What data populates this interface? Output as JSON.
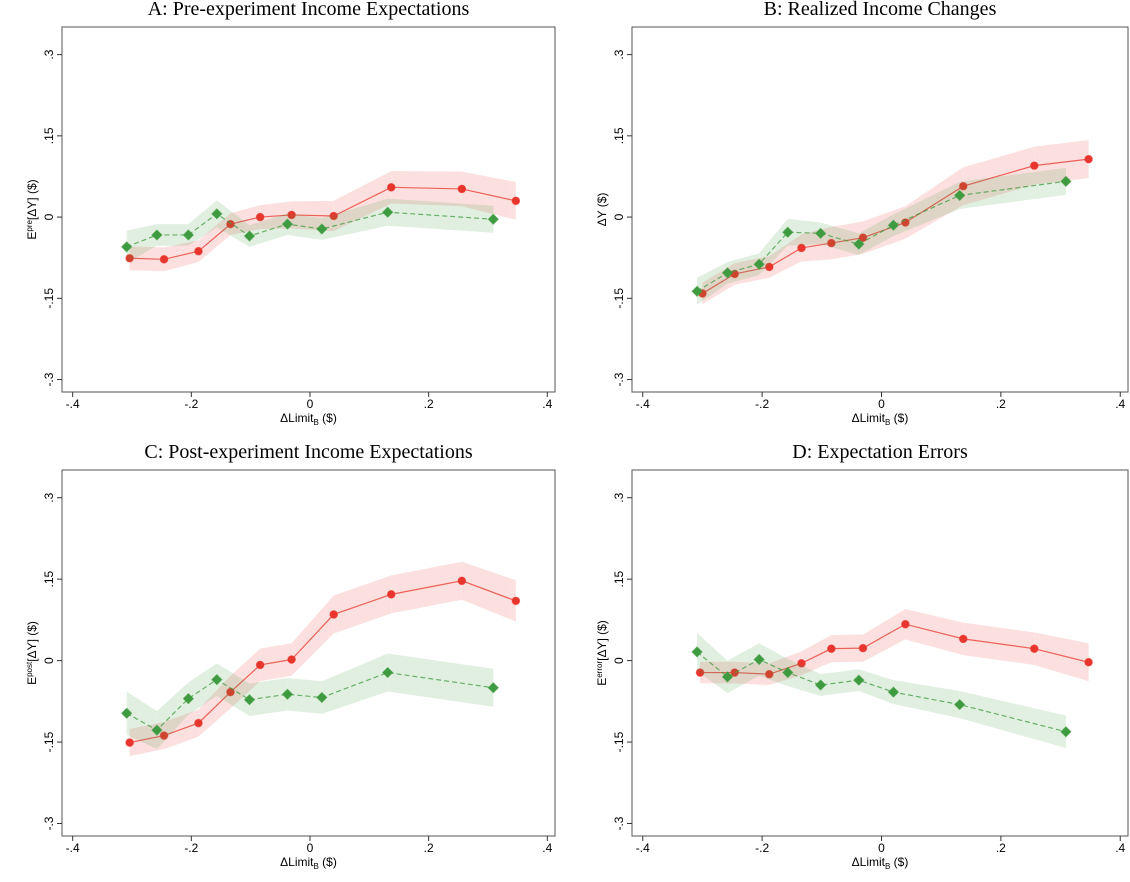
{
  "chart_data": [
    {
      "type": "line",
      "title": "A: Pre-experiment Income Expectations",
      "xlabel": [
        "ΔLimit",
        "B",
        " ($)"
      ],
      "ylabel": [
        "E",
        "pre",
        "[ΔY] ($)"
      ],
      "xlim": [
        -0.418,
        0.413
      ],
      "ylim": [
        -0.323,
        0.351
      ],
      "xticks": [
        {
          "value": -0.4,
          "label": "-.4"
        },
        {
          "value": -0.2,
          "label": "-.2"
        },
        0,
        {
          "value": 0.2,
          "label": ".2"
        },
        {
          "value": 0.4,
          "label": ".4"
        }
      ],
      "yticks": [
        {
          "value": -0.3,
          "label": "-.3"
        },
        {
          "value": -0.15,
          "label": "-.15"
        },
        0,
        {
          "value": 0.15,
          "label": ".15"
        },
        {
          "value": 0.3,
          "label": ".3"
        }
      ],
      "series": [
        {
          "color": "#e8352d",
          "marker": "circle",
          "dash": false,
          "x": [
            -0.304,
            -0.246,
            -0.188,
            -0.134,
            -0.084,
            -0.031,
            0.04,
            0.137,
            0.256,
            0.347
          ],
          "values": [
            -0.076,
            -0.078,
            -0.063,
            -0.013,
            0,
            0.004,
            0.002,
            0.055,
            0.052,
            0.03
          ],
          "ci": [
            0.022,
            0.022,
            0.02,
            0.02,
            0.022,
            0.025,
            0.028,
            0.03,
            0.032,
            0.035
          ]
        },
        {
          "color": "#3f9b3f",
          "marker": "diamond",
          "dash": true,
          "x": [
            -0.309,
            -0.258,
            -0.205,
            -0.157,
            -0.102,
            -0.038,
            0.02,
            0.131,
            0.309
          ],
          "values": [
            -0.055,
            -0.033,
            -0.033,
            0.006,
            -0.035,
            -0.013,
            -0.022,
            0.009,
            -0.004
          ],
          "ci": [
            0.03,
            0.02,
            0.02,
            0.025,
            0.02,
            0.02,
            0.02,
            0.025,
            0.025
          ]
        }
      ]
    },
    {
      "type": "line",
      "title": "B: Realized Income Changes",
      "xlabel": [
        "ΔLimit",
        "B",
        " ($)"
      ],
      "ylabel": [
        "ΔY ($)"
      ],
      "xlim": [
        -0.418,
        0.413
      ],
      "ylim": [
        -0.323,
        0.351
      ],
      "xticks": [
        {
          "value": -0.4,
          "label": "-.4"
        },
        {
          "value": -0.2,
          "label": "-.2"
        },
        0,
        {
          "value": 0.2,
          "label": ".2"
        },
        {
          "value": 0.4,
          "label": ".4"
        }
      ],
      "yticks": [
        {
          "value": -0.3,
          "label": "-.3"
        },
        {
          "value": -0.15,
          "label": "-.15"
        },
        0,
        {
          "value": 0.15,
          "label": ".15"
        },
        {
          "value": 0.3,
          "label": ".3"
        }
      ],
      "series": [
        {
          "color": "#e8352d",
          "marker": "circle",
          "dash": false,
          "x": [
            -0.3,
            -0.246,
            -0.188,
            -0.134,
            -0.084,
            -0.031,
            0.04,
            0.137,
            0.256,
            0.347
          ],
          "values": [
            -0.141,
            -0.105,
            -0.092,
            -0.057,
            -0.048,
            -0.038,
            -0.01,
            0.057,
            0.095,
            0.107
          ],
          "ci": [
            0.02,
            0.02,
            0.02,
            0.025,
            0.03,
            0.03,
            0.03,
            0.035,
            0.035,
            0.035
          ]
        },
        {
          "color": "#3f9b3f",
          "marker": "diamond",
          "dash": true,
          "x": [
            -0.309,
            -0.258,
            -0.205,
            -0.157,
            -0.102,
            -0.038,
            0.02,
            0.131,
            0.309
          ],
          "values": [
            -0.137,
            -0.103,
            -0.087,
            -0.028,
            -0.03,
            -0.05,
            -0.015,
            0.04,
            0.066
          ],
          "ci": [
            0.025,
            0.02,
            0.02,
            0.025,
            0.02,
            0.02,
            0.02,
            0.025,
            0.025
          ]
        }
      ]
    },
    {
      "type": "line",
      "title": "C: Post-experiment Income Expectations",
      "xlabel": [
        "ΔLimit",
        "B",
        " ($)"
      ],
      "ylabel": [
        "E",
        "post",
        "[ΔY] ($)"
      ],
      "xlim": [
        -0.418,
        0.413
      ],
      "ylim": [
        -0.323,
        0.351
      ],
      "xticks": [
        {
          "value": -0.4,
          "label": "-.4"
        },
        {
          "value": -0.2,
          "label": "-.2"
        },
        0,
        {
          "value": 0.2,
          "label": ".2"
        },
        {
          "value": 0.4,
          "label": ".4"
        }
      ],
      "yticks": [
        {
          "value": -0.3,
          "label": "-.3"
        },
        {
          "value": -0.15,
          "label": "-.15"
        },
        0,
        {
          "value": 0.15,
          "label": ".15"
        },
        {
          "value": 0.3,
          "label": ".3"
        }
      ],
      "series": [
        {
          "color": "#e8352d",
          "marker": "circle",
          "dash": false,
          "x": [
            -0.304,
            -0.246,
            -0.188,
            -0.134,
            -0.084,
            -0.031,
            0.04,
            0.137,
            0.256,
            0.347
          ],
          "values": [
            -0.151,
            -0.138,
            -0.115,
            -0.058,
            -0.008,
            0.002,
            0.085,
            0.122,
            0.147,
            0.11
          ],
          "ci": [
            0.025,
            0.025,
            0.025,
            0.03,
            0.03,
            0.03,
            0.035,
            0.035,
            0.035,
            0.038
          ]
        },
        {
          "color": "#3f9b3f",
          "marker": "diamond",
          "dash": true,
          "x": [
            -0.309,
            -0.258,
            -0.205,
            -0.157,
            -0.102,
            -0.038,
            0.02,
            0.131,
            0.309
          ],
          "values": [
            -0.097,
            -0.128,
            -0.07,
            -0.035,
            -0.072,
            -0.062,
            -0.068,
            -0.022,
            -0.05
          ],
          "ci": [
            0.04,
            0.035,
            0.03,
            0.03,
            0.03,
            0.03,
            0.03,
            0.035,
            0.035
          ]
        }
      ]
    },
    {
      "type": "line",
      "title": "D: Expectation Errors",
      "xlabel": [
        "ΔLimit",
        "B",
        " ($)"
      ],
      "ylabel": [
        "E",
        "error",
        "[ΔY] ($)"
      ],
      "xlim": [
        -0.418,
        0.413
      ],
      "ylim": [
        -0.323,
        0.351
      ],
      "xticks": [
        {
          "value": -0.4,
          "label": "-.4"
        },
        {
          "value": -0.2,
          "label": "-.2"
        },
        0,
        {
          "value": 0.2,
          "label": ".2"
        },
        {
          "value": 0.4,
          "label": ".4"
        }
      ],
      "yticks": [
        {
          "value": -0.3,
          "label": "-.3"
        },
        {
          "value": -0.15,
          "label": "-.15"
        },
        0,
        {
          "value": 0.15,
          "label": ".15"
        },
        {
          "value": 0.3,
          "label": ".3"
        }
      ],
      "series": [
        {
          "color": "#e8352d",
          "marker": "circle",
          "dash": false,
          "x": [
            -0.304,
            -0.246,
            -0.188,
            -0.134,
            -0.084,
            -0.031,
            0.04,
            0.137,
            0.256,
            0.347
          ],
          "values": [
            -0.022,
            -0.022,
            -0.025,
            -0.005,
            0.022,
            0.023,
            0.067,
            0.04,
            0.022,
            -0.003
          ],
          "ci": [
            0.02,
            0.02,
            0.02,
            0.022,
            0.025,
            0.025,
            0.028,
            0.03,
            0.03,
            0.035
          ]
        },
        {
          "color": "#3f9b3f",
          "marker": "diamond",
          "dash": true,
          "x": [
            -0.309,
            -0.258,
            -0.205,
            -0.157,
            -0.102,
            -0.038,
            0.02,
            0.131,
            0.309
          ],
          "values": [
            0.016,
            -0.03,
            0.002,
            -0.022,
            -0.045,
            -0.036,
            -0.058,
            -0.081,
            -0.131
          ],
          "ci": [
            0.035,
            0.03,
            0.03,
            0.025,
            0.02,
            0.02,
            0.022,
            0.025,
            0.03
          ]
        }
      ]
    }
  ]
}
